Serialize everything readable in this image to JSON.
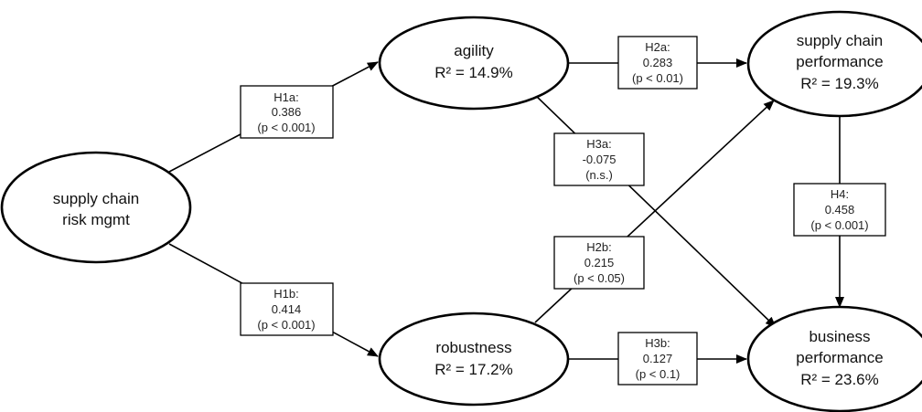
{
  "nodes": {
    "scrm": {
      "lines": [
        "supply chain",
        "risk mgmt"
      ]
    },
    "agility": {
      "lines": [
        "agility",
        "R² = 14.9%"
      ]
    },
    "robustness": {
      "lines": [
        "robustness",
        "R² = 17.2%"
      ]
    },
    "scp": {
      "lines": [
        "supply chain",
        "performance",
        "R² = 19.3%"
      ]
    },
    "bp": {
      "lines": [
        "business",
        "performance",
        "R² = 23.6%"
      ]
    }
  },
  "paths": {
    "h1a": {
      "lines": [
        "H1a:",
        "0.386",
        "(p < 0.001)"
      ]
    },
    "h1b": {
      "lines": [
        "H1b:",
        "0.414",
        "(p < 0.001)"
      ]
    },
    "h2a": {
      "lines": [
        "H2a:",
        "0.283",
        "(p < 0.01)"
      ]
    },
    "h2b": {
      "lines": [
        "H2b:",
        "0.215",
        "(p < 0.05)"
      ]
    },
    "h3a": {
      "lines": [
        "H3a:",
        "-0.075",
        "(n.s.)"
      ]
    },
    "h3b": {
      "lines": [
        "H3b:",
        "0.127",
        "(p < 0.1)"
      ]
    },
    "h4": {
      "lines": [
        "H4:",
        "0.458",
        "(p < 0.001)"
      ]
    }
  }
}
